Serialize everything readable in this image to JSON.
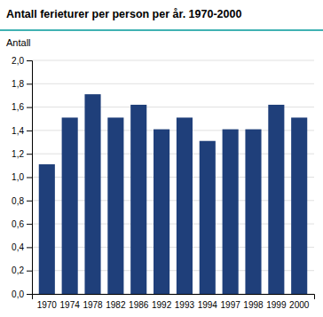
{
  "chart_data": {
    "type": "bar",
    "title": "Antall ferieturer per person per år. 1970-2000",
    "ylabel": "Antall",
    "categories": [
      "1970",
      "1974",
      "1978",
      "1982",
      "1986",
      "1992",
      "1993",
      "1994",
      "1997",
      "1998",
      "1999",
      "2000"
    ],
    "values": [
      1.11,
      1.51,
      1.71,
      1.51,
      1.62,
      1.41,
      1.51,
      1.31,
      1.41,
      1.41,
      1.62,
      1.51
    ],
    "color": "#1F3F7A",
    "ylim": [
      0.0,
      2.0
    ],
    "yticks": [
      {
        "value": 0.0,
        "label": "0,0"
      },
      {
        "value": 0.2,
        "label": "0,2"
      },
      {
        "value": 0.4,
        "label": "0,4"
      },
      {
        "value": 0.6,
        "label": "0,6"
      },
      {
        "value": 0.8,
        "label": "0,8"
      },
      {
        "value": 1.0,
        "label": "1,0"
      },
      {
        "value": 1.2,
        "label": "1,2"
      },
      {
        "value": 1.4,
        "label": "1,4"
      },
      {
        "value": 1.6,
        "label": "1,6"
      },
      {
        "value": 1.8,
        "label": "1,8"
      },
      {
        "value": 2.0,
        "label": "2,0"
      }
    ],
    "grid": true
  }
}
